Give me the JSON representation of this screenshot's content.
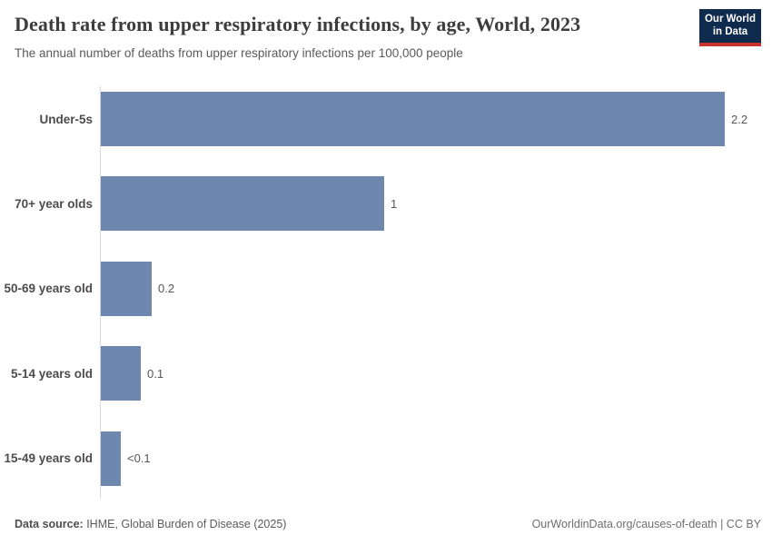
{
  "header": {
    "title": "Death rate from upper respiratory infections, by age, World, 2023",
    "subtitle": "The annual number of deaths from upper respiratory infections per 100,000 people",
    "logo": {
      "line1": "Our World",
      "line2": "in Data"
    }
  },
  "chart_data": {
    "type": "bar",
    "orientation": "horizontal",
    "title": "Death rate from upper respiratory infections, by age, World, 2023",
    "xlabel": "",
    "ylabel": "",
    "grid": false,
    "legend": "none",
    "categories": [
      "Under-5s",
      "70+ year olds",
      "50-69 years old",
      "5-14 years old",
      "15-49 years old"
    ],
    "values": [
      2.2,
      1.0,
      0.18,
      0.14,
      0.07
    ],
    "value_labels": [
      "2.2",
      "1",
      "0.2",
      "0.1",
      "<0.1"
    ],
    "xlim": [
      0,
      2.2
    ],
    "unit": "deaths per 100,000 people"
  },
  "colors": {
    "bar": "#6d87ae",
    "axis": "#d9d9d9",
    "title_text": "#3d3d3d",
    "body_text": "#5a5a5a",
    "logo_bg": "#0e2a4d",
    "logo_accent": "#cb342c"
  },
  "footer": {
    "source_label": "Data source:",
    "source_text": " IHME, Global Burden of Disease (2025)",
    "credit": "OurWorldinData.org/causes-of-death | CC BY"
  }
}
